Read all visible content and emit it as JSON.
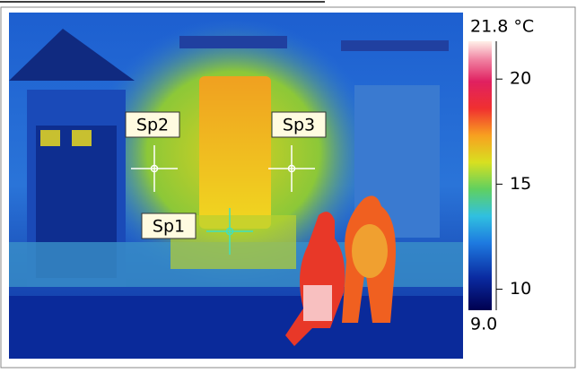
{
  "image": {
    "spots": [
      {
        "label": "Sp1"
      },
      {
        "label": "Sp2"
      },
      {
        "label": "Sp3"
      }
    ],
    "scale": {
      "max": {
        "value": 21.8,
        "label": "21.8 °C"
      },
      "min": {
        "value": 9.0,
        "label": "9.0"
      },
      "ticks": [
        20,
        15,
        10
      ]
    }
  }
}
